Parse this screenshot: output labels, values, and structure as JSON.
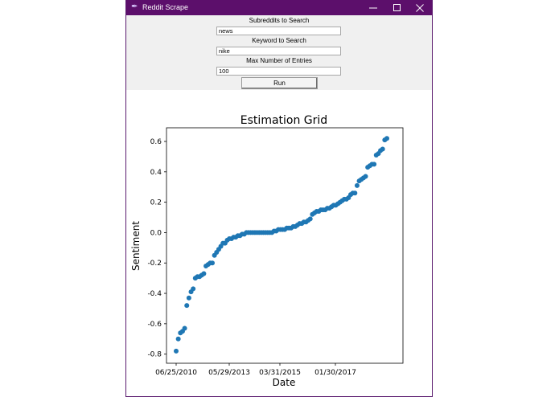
{
  "window": {
    "title": "Reddit Scrape",
    "accent": "#5c0f6b"
  },
  "form": {
    "subreddits_label": "Subreddits to Search",
    "subreddits_value": "news",
    "keyword_label": "Keyword to Search",
    "keyword_value": "nike",
    "max_label": "Max Number of Entries",
    "max_value": "100",
    "run_label": "Run"
  },
  "chart_data": {
    "type": "scatter",
    "title": "Estimation Grid",
    "xlabel": "Date",
    "ylabel": "Sentiment",
    "x_ticks": [
      "06/25/2010",
      "05/29/2013",
      "03/31/2015",
      "01/30/2017"
    ],
    "y_ticks": [
      -0.8,
      -0.6,
      -0.4,
      -0.2,
      0.0,
      0.2,
      0.4,
      0.6
    ],
    "ylim": [
      -0.86,
      0.69
    ],
    "grid": false,
    "color": "#1f77b4",
    "points_xy": [
      [
        0,
        -0.78
      ],
      [
        1,
        -0.7
      ],
      [
        2,
        -0.66
      ],
      [
        3,
        -0.65
      ],
      [
        4,
        -0.63
      ],
      [
        5,
        -0.48
      ],
      [
        6,
        -0.43
      ],
      [
        7,
        -0.39
      ],
      [
        8,
        -0.37
      ],
      [
        9,
        -0.3
      ],
      [
        10,
        -0.29
      ],
      [
        11,
        -0.29
      ],
      [
        12,
        -0.28
      ],
      [
        13,
        -0.27
      ],
      [
        14,
        -0.22
      ],
      [
        15,
        -0.21
      ],
      [
        16,
        -0.2
      ],
      [
        17,
        -0.2
      ],
      [
        18,
        -0.15
      ],
      [
        19,
        -0.13
      ],
      [
        20,
        -0.11
      ],
      [
        21,
        -0.09
      ],
      [
        22,
        -0.07
      ],
      [
        23,
        -0.07
      ],
      [
        24,
        -0.05
      ],
      [
        25,
        -0.04
      ],
      [
        26,
        -0.04
      ],
      [
        27,
        -0.03
      ],
      [
        28,
        -0.03
      ],
      [
        29,
        -0.02
      ],
      [
        30,
        -0.02
      ],
      [
        31,
        -0.01
      ],
      [
        32,
        -0.01
      ],
      [
        33,
        0.0
      ],
      [
        34,
        0.0
      ],
      [
        35,
        0.0
      ],
      [
        36,
        0.0
      ],
      [
        37,
        0.0
      ],
      [
        38,
        0.0
      ],
      [
        39,
        0.0
      ],
      [
        40,
        0.0
      ],
      [
        41,
        0.0
      ],
      [
        42,
        0.0
      ],
      [
        43,
        0.0
      ],
      [
        44,
        0.0
      ],
      [
        45,
        0.0
      ],
      [
        46,
        0.01
      ],
      [
        47,
        0.01
      ],
      [
        48,
        0.02
      ],
      [
        49,
        0.02
      ],
      [
        50,
        0.02
      ],
      [
        51,
        0.02
      ],
      [
        52,
        0.03
      ],
      [
        53,
        0.03
      ],
      [
        54,
        0.03
      ],
      [
        55,
        0.04
      ],
      [
        56,
        0.04
      ],
      [
        57,
        0.05
      ],
      [
        58,
        0.06
      ],
      [
        59,
        0.06
      ],
      [
        60,
        0.07
      ],
      [
        61,
        0.07
      ],
      [
        62,
        0.08
      ],
      [
        63,
        0.09
      ],
      [
        64,
        0.12
      ],
      [
        65,
        0.13
      ],
      [
        66,
        0.14
      ],
      [
        67,
        0.14
      ],
      [
        68,
        0.15
      ],
      [
        69,
        0.15
      ],
      [
        70,
        0.15
      ],
      [
        71,
        0.16
      ],
      [
        72,
        0.16
      ],
      [
        73,
        0.17
      ],
      [
        74,
        0.18
      ],
      [
        75,
        0.18
      ],
      [
        76,
        0.19
      ],
      [
        77,
        0.2
      ],
      [
        78,
        0.21
      ],
      [
        79,
        0.22
      ],
      [
        80,
        0.22
      ],
      [
        81,
        0.23
      ],
      [
        82,
        0.25
      ],
      [
        83,
        0.26
      ],
      [
        84,
        0.26
      ],
      [
        85,
        0.31
      ],
      [
        86,
        0.34
      ],
      [
        87,
        0.35
      ],
      [
        88,
        0.36
      ],
      [
        89,
        0.37
      ],
      [
        90,
        0.43
      ],
      [
        91,
        0.44
      ],
      [
        92,
        0.45
      ],
      [
        93,
        0.45
      ],
      [
        94,
        0.51
      ],
      [
        95,
        0.52
      ],
      [
        96,
        0.54
      ],
      [
        97,
        0.55
      ],
      [
        98,
        0.61
      ],
      [
        99,
        0.62
      ]
    ]
  }
}
